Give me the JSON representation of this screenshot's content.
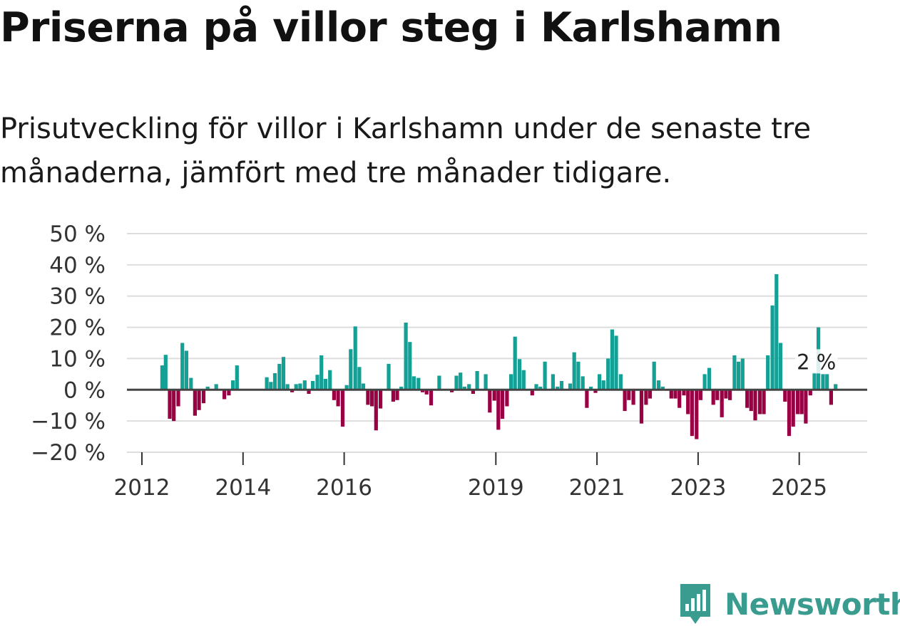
{
  "title": "Priserna på villor steg i Karlshamn",
  "subtitle": "Prisutveckling för villor i Karlshamn under de senaste tre månaderna, jämfört med tre månader tidigare.",
  "brand": "Newsworthy",
  "colors": {
    "positive": "#15a095",
    "negative": "#990044",
    "grid": "#dddddd",
    "zero": "#444444",
    "logo": "#3a9b8f"
  },
  "chart_data": {
    "type": "bar",
    "title": "Priserna på villor steg i Karlshamn",
    "xlabel": "",
    "ylabel": "",
    "ylim": [
      -20,
      50
    ],
    "y_ticks": [
      50,
      40,
      30,
      20,
      10,
      0,
      -10,
      -20
    ],
    "y_tick_labels": [
      "50 %",
      "40 %",
      "30 %",
      "20 %",
      "10 %",
      "0 %",
      "−10 %",
      "−20 %"
    ],
    "x_tick_labels": [
      "2012",
      "2014",
      "2016",
      "2019",
      "2021",
      "2023",
      "2025"
    ],
    "x_tick_years": [
      2012,
      2014,
      2016,
      2019,
      2021,
      2023,
      2025
    ],
    "x_start": 2012.0,
    "x_end": 2027.0,
    "series": [
      {
        "name": "Prisutveckling",
        "points": [
          [
            2012.4,
            7.8
          ],
          [
            2012.47,
            11.2
          ],
          [
            2012.55,
            -9.3
          ],
          [
            2012.63,
            -10.0
          ],
          [
            2012.72,
            -5.3
          ],
          [
            2012.8,
            15.0
          ],
          [
            2012.88,
            12.5
          ],
          [
            2012.97,
            3.8
          ],
          [
            2013.05,
            -8.3
          ],
          [
            2013.13,
            -6.5
          ],
          [
            2013.22,
            -4.3
          ],
          [
            2013.3,
            1.0
          ],
          [
            2013.47,
            1.8
          ],
          [
            2013.63,
            -3.0
          ],
          [
            2013.72,
            -1.8
          ],
          [
            2013.8,
            3.0
          ],
          [
            2013.88,
            7.8
          ],
          [
            2014.47,
            4.0
          ],
          [
            2014.55,
            2.5
          ],
          [
            2014.63,
            5.3
          ],
          [
            2014.72,
            8.3
          ],
          [
            2014.8,
            10.5
          ],
          [
            2014.88,
            1.8
          ],
          [
            2014.97,
            -0.8
          ],
          [
            2015.05,
            1.8
          ],
          [
            2015.13,
            2.0
          ],
          [
            2015.22,
            3.0
          ],
          [
            2015.3,
            -1.3
          ],
          [
            2015.38,
            2.8
          ],
          [
            2015.47,
            4.8
          ],
          [
            2015.55,
            11.0
          ],
          [
            2015.63,
            3.5
          ],
          [
            2015.72,
            6.3
          ],
          [
            2015.8,
            -3.3
          ],
          [
            2015.88,
            -5.3
          ],
          [
            2015.97,
            -11.8
          ],
          [
            2016.05,
            1.5
          ],
          [
            2016.13,
            13.0
          ],
          [
            2016.22,
            20.3
          ],
          [
            2016.3,
            7.3
          ],
          [
            2016.38,
            2.0
          ],
          [
            2016.47,
            -4.8
          ],
          [
            2016.55,
            -5.3
          ],
          [
            2016.63,
            -13.0
          ],
          [
            2016.72,
            -6.0
          ],
          [
            2016.88,
            8.3
          ],
          [
            2016.97,
            -3.8
          ],
          [
            2017.05,
            -3.3
          ],
          [
            2017.13,
            1.0
          ],
          [
            2017.22,
            21.5
          ],
          [
            2017.3,
            15.3
          ],
          [
            2017.38,
            4.3
          ],
          [
            2017.47,
            3.8
          ],
          [
            2017.55,
            -0.8
          ],
          [
            2017.63,
            -1.5
          ],
          [
            2017.72,
            -5.0
          ],
          [
            2017.88,
            4.5
          ],
          [
            2018.13,
            -0.8
          ],
          [
            2018.22,
            4.5
          ],
          [
            2018.3,
            5.5
          ],
          [
            2018.38,
            1.0
          ],
          [
            2018.47,
            1.8
          ],
          [
            2018.55,
            -1.3
          ],
          [
            2018.63,
            6.0
          ],
          [
            2018.8,
            5.0
          ],
          [
            2018.88,
            -7.3
          ],
          [
            2018.97,
            -3.5
          ],
          [
            2019.05,
            -12.8
          ],
          [
            2019.13,
            -9.3
          ],
          [
            2019.22,
            -5.3
          ],
          [
            2019.3,
            5.0
          ],
          [
            2019.38,
            17.0
          ],
          [
            2019.47,
            9.8
          ],
          [
            2019.55,
            6.3
          ],
          [
            2019.72,
            -1.8
          ],
          [
            2019.8,
            1.8
          ],
          [
            2019.88,
            1.0
          ],
          [
            2019.97,
            9.0
          ],
          [
            2020.13,
            5.0
          ],
          [
            2020.22,
            1.0
          ],
          [
            2020.3,
            2.8
          ],
          [
            2020.47,
            2.0
          ],
          [
            2020.55,
            12.0
          ],
          [
            2020.63,
            9.0
          ],
          [
            2020.72,
            4.3
          ],
          [
            2020.8,
            -5.8
          ],
          [
            2020.88,
            1.0
          ],
          [
            2020.97,
            -1.0
          ],
          [
            2021.05,
            5.0
          ],
          [
            2021.13,
            3.0
          ],
          [
            2021.22,
            10.0
          ],
          [
            2021.3,
            19.3
          ],
          [
            2021.38,
            17.3
          ],
          [
            2021.47,
            5.0
          ],
          [
            2021.55,
            -6.8
          ],
          [
            2021.63,
            -3.3
          ],
          [
            2021.72,
            -4.8
          ],
          [
            2021.8,
            -0.3
          ],
          [
            2021.88,
            -10.8
          ],
          [
            2021.97,
            -4.8
          ],
          [
            2022.05,
            -2.8
          ],
          [
            2022.13,
            9.0
          ],
          [
            2022.22,
            3.0
          ],
          [
            2022.3,
            1.0
          ],
          [
            2022.38,
            -0.3
          ],
          [
            2022.47,
            -2.8
          ],
          [
            2022.55,
            -2.8
          ],
          [
            2022.63,
            -5.8
          ],
          [
            2022.72,
            -1.8
          ],
          [
            2022.8,
            -7.8
          ],
          [
            2022.88,
            -14.8
          ],
          [
            2022.97,
            -15.8
          ],
          [
            2023.05,
            -3.3
          ],
          [
            2023.13,
            5.0
          ],
          [
            2023.22,
            7.0
          ],
          [
            2023.3,
            -4.8
          ],
          [
            2023.38,
            -3.3
          ],
          [
            2023.47,
            -8.8
          ],
          [
            2023.55,
            -2.8
          ],
          [
            2023.63,
            -3.3
          ],
          [
            2023.72,
            11.0
          ],
          [
            2023.8,
            9.0
          ],
          [
            2023.88,
            10.0
          ],
          [
            2023.97,
            -5.8
          ],
          [
            2024.05,
            -6.8
          ],
          [
            2024.13,
            -9.8
          ],
          [
            2024.22,
            -7.8
          ],
          [
            2024.3,
            -7.8
          ],
          [
            2024.38,
            11.0
          ],
          [
            2024.47,
            27.0
          ],
          [
            2024.55,
            37.0
          ],
          [
            2024.63,
            15.0
          ],
          [
            2024.72,
            -3.8
          ],
          [
            2024.8,
            -14.8
          ],
          [
            2024.88,
            -11.8
          ],
          [
            2024.97,
            -7.8
          ],
          [
            2025.05,
            -7.8
          ],
          [
            2025.13,
            -10.8
          ],
          [
            2025.22,
            -1.8
          ],
          [
            2025.3,
            5.5
          ],
          [
            2025.38,
            20.0
          ],
          [
            2025.47,
            5.0
          ],
          [
            2025.55,
            5.0
          ],
          [
            2025.63,
            -4.8
          ],
          [
            2025.72,
            1.8
          ]
        ]
      }
    ],
    "annotation": {
      "text": "2 %",
      "x": 2025.72,
      "y": 1.8
    }
  }
}
